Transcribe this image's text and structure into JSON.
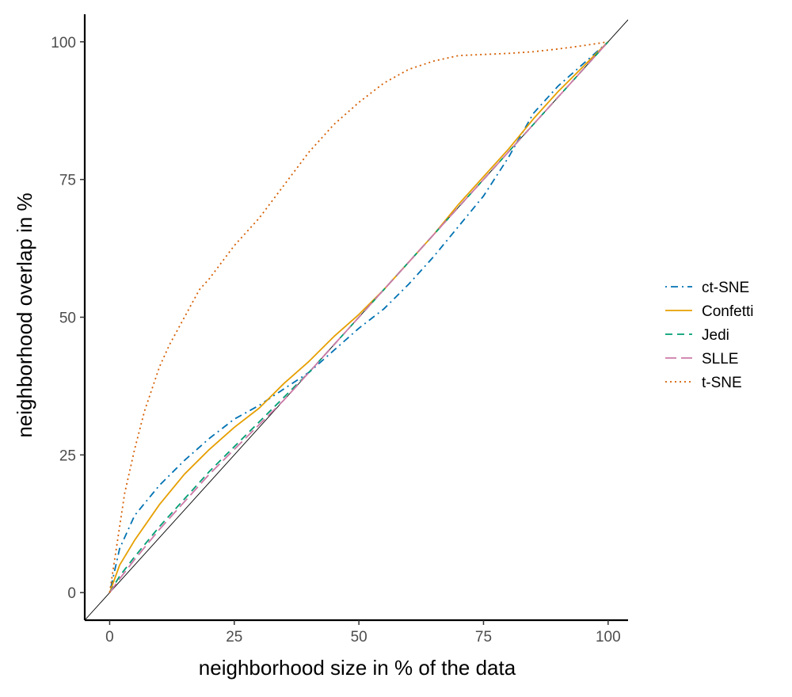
{
  "chart_data": {
    "type": "line",
    "title": "",
    "xlabel": "neighborhood size in % of the data",
    "ylabel": "neighborhood overlap in %",
    "xlim": [
      -5,
      104
    ],
    "ylim": [
      -5,
      105
    ],
    "xticks": [
      0,
      25,
      50,
      75,
      100
    ],
    "yticks": [
      0,
      25,
      50,
      75,
      100
    ],
    "grid": false,
    "legend_position": "right",
    "reference_line": {
      "from": [
        -5,
        -5
      ],
      "to": [
        104,
        104
      ],
      "color": "#000000"
    },
    "series": [
      {
        "name": "ct-SNE",
        "color": "#0072B2",
        "dash": "dotdash",
        "x": [
          0,
          2,
          5,
          10,
          15,
          20,
          25,
          30,
          35,
          40,
          45,
          50,
          55,
          60,
          65,
          70,
          75,
          80,
          85,
          90,
          95,
          100
        ],
        "y": [
          0,
          8,
          14,
          19.5,
          24,
          28,
          31.5,
          34,
          37,
          40,
          44,
          48,
          51.5,
          56,
          61,
          66.5,
          72,
          79,
          87,
          92,
          96,
          100
        ]
      },
      {
        "name": "Confetti",
        "color": "#E69F00",
        "dash": "solid",
        "x": [
          0,
          2,
          5,
          10,
          15,
          20,
          25,
          30,
          35,
          40,
          45,
          50,
          55,
          60,
          65,
          70,
          75,
          80,
          85,
          90,
          95,
          100
        ],
        "y": [
          0,
          5,
          9.5,
          16,
          21.5,
          26,
          30,
          33.5,
          38,
          42,
          46.5,
          50.5,
          55,
          60,
          65,
          70.5,
          75.5,
          80.5,
          86,
          91,
          95.5,
          100
        ]
      },
      {
        "name": "Jedi",
        "color": "#009E73",
        "dash": "dashed",
        "x": [
          0,
          2,
          5,
          10,
          15,
          20,
          25,
          30,
          35,
          40,
          45,
          50,
          55,
          60,
          65,
          70,
          75,
          80,
          85,
          90,
          95,
          100
        ],
        "y": [
          0,
          3,
          6.5,
          12,
          17,
          22,
          26.5,
          31,
          35.5,
          40,
          45,
          50,
          55,
          60,
          65,
          70,
          75,
          80,
          85,
          90,
          95,
          100
        ]
      },
      {
        "name": "SLLE",
        "color": "#CC79A7",
        "dash": "longdash",
        "x": [
          0,
          2,
          5,
          10,
          15,
          20,
          25,
          30,
          35,
          40,
          45,
          50,
          55,
          60,
          65,
          70,
          75,
          80,
          85,
          90,
          95,
          100
        ],
        "y": [
          0,
          2.5,
          6,
          11.5,
          16.5,
          21.5,
          26,
          30.5,
          35,
          40,
          45,
          50,
          55,
          60,
          65,
          70,
          75,
          80,
          85,
          90,
          95,
          100
        ]
      },
      {
        "name": "t-SNE",
        "color": "#D55E00",
        "dash": "dotted",
        "x": [
          0,
          1,
          2,
          3,
          5,
          7,
          10,
          12,
          15,
          18,
          20,
          25,
          30,
          35,
          40,
          45,
          50,
          55,
          60,
          65,
          70,
          75,
          80,
          85,
          90,
          95,
          100
        ],
        "y": [
          0,
          6,
          12,
          18,
          26,
          33,
          41,
          45,
          50,
          55,
          57,
          63,
          68,
          74,
          80,
          85,
          89,
          92.5,
          95,
          96.5,
          97.5,
          97.7,
          97.9,
          98.2,
          98.7,
          99.3,
          100
        ]
      }
    ]
  }
}
